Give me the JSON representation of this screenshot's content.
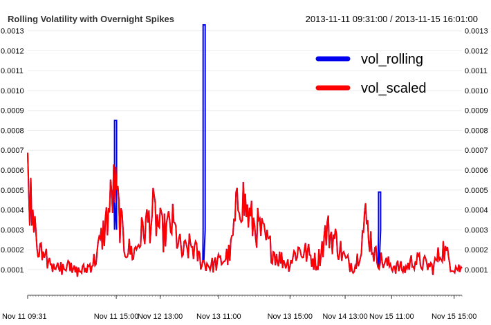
{
  "chart_data": {
    "type": "line",
    "title": "Rolling Volatility with Overnight Spikes",
    "date_range": "2013-11-11 09:31:00 / 2013-11-15 16:01:00",
    "ylim": [
      3e-05,
      0.00133
    ],
    "y_ticks": [
      0.0001,
      0.0002,
      0.0003,
      0.0004,
      0.0005,
      0.0006,
      0.0007,
      0.0008,
      0.0009,
      0.001,
      0.0011,
      0.0012,
      0.0013
    ],
    "y_tick_labels": [
      "0.0001",
      "0.0002",
      "0.0003",
      "0.0004",
      "0.0005",
      "0.0006",
      "0.0007",
      "0.0008",
      "0.0009",
      "0.0010",
      "0.0011",
      "0.0012",
      "0.0013"
    ],
    "x_tick_labels": [
      "Nov 11 09:31",
      "Nov 11 15:00",
      "Nov 12 13:00",
      "Nov 13 11:00",
      "Nov 13 15:00",
      "Nov 14 13:00",
      "Nov 15 11:00",
      "Nov 15 15:00"
    ],
    "x_tick_positions": [
      0,
      0.204,
      0.305,
      0.44,
      0.604,
      0.731,
      0.838,
      0.982
    ],
    "grid": true,
    "legend_position": "top-right",
    "series": [
      {
        "name": "vol_rolling",
        "color": "#0000ee",
        "values": [
          0.00022,
          0.00085,
          0.00031,
          0.00133,
          0.00032,
          0.00025,
          0.00049,
          0.00025
        ]
      },
      {
        "name": "vol_scaled",
        "color": "#ff0000",
        "values": [
          0.00055,
          0.00022,
          0.00015,
          0.0001,
          0.00012,
          9e-05,
          0.0001,
          0.00015,
          0.00031,
          0.00052,
          0.00022,
          0.00018,
          0.0003,
          0.00038,
          0.00028,
          0.00033,
          0.00018,
          0.00022,
          0.00014,
          0.00012,
          0.00014,
          0.00018,
          0.0005,
          0.00035,
          0.0003,
          0.00022,
          0.00016,
          0.00013,
          0.0002,
          0.00018,
          0.00013,
          0.0003,
          0.00024,
          0.00014,
          0.00012,
          0.00035,
          0.00017,
          0.00013,
          0.00012,
          0.0001,
          0.00015,
          0.00013,
          0.00011,
          0.00021,
          0.00012,
          0.0001
        ]
      }
    ]
  }
}
